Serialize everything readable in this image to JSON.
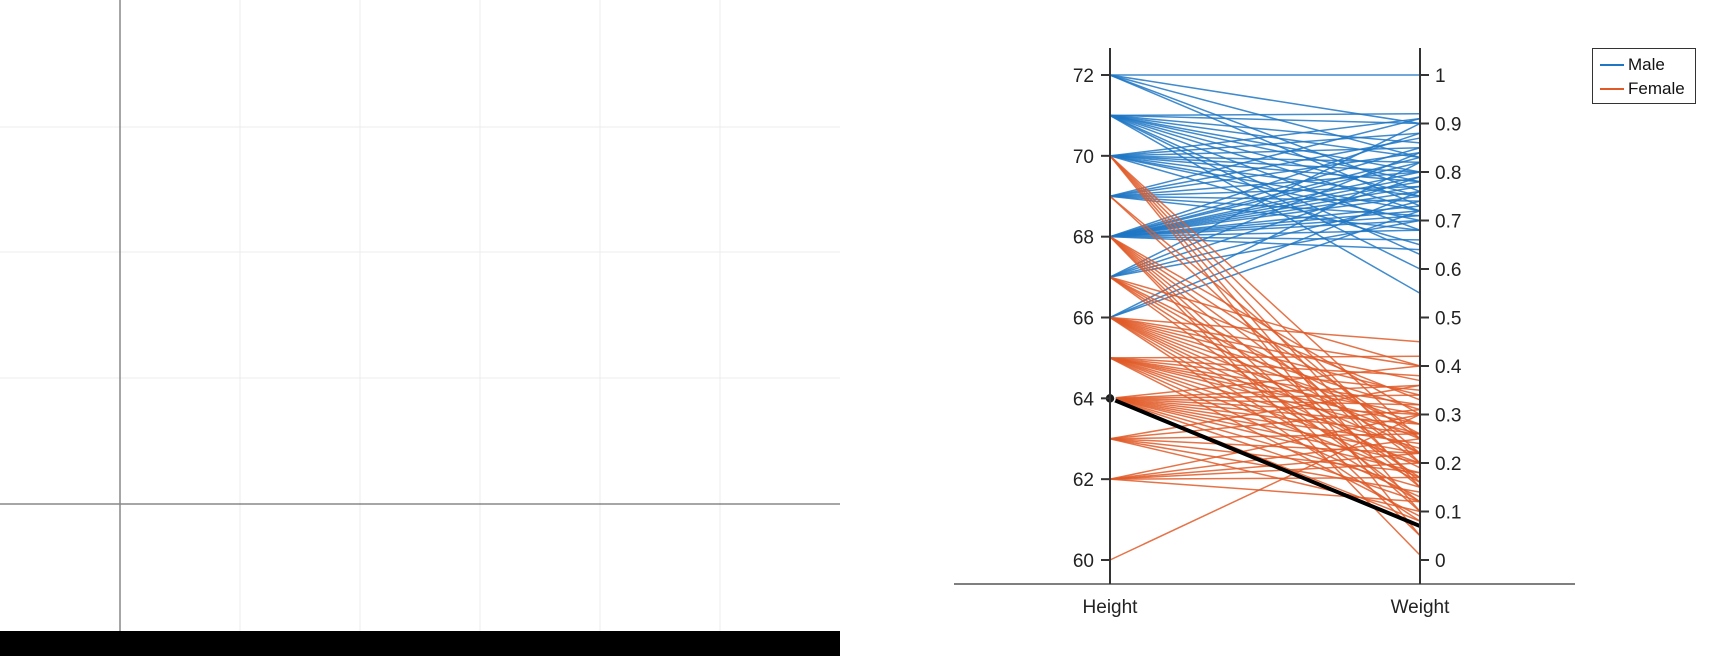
{
  "chart_data": {
    "type": "parallel-coordinates",
    "axes": [
      {
        "name": "Height",
        "ticks": [
          "60",
          "62",
          "64",
          "66",
          "68",
          "70",
          "72"
        ],
        "range": [
          60,
          72
        ]
      },
      {
        "name": "Weight",
        "ticks": [
          "0",
          "0.1",
          "0.2",
          "0.3",
          "0.4",
          "0.5",
          "0.6",
          "0.7",
          "0.8",
          "0.9",
          "1"
        ],
        "range": [
          0,
          1
        ]
      }
    ],
    "legend": {
      "placement": "top-right",
      "entries": [
        {
          "name": "Male"
        },
        {
          "name": "Female"
        }
      ]
    },
    "colors": {
      "Male": "#1f77c4",
      "Female": "#e05a28",
      "highlight": "#000000"
    },
    "highlight": {
      "height": 64,
      "weight": 0.07
    },
    "series": [
      {
        "name": "Male",
        "lines": [
          [
            72,
            1.0
          ],
          [
            72,
            0.9
          ],
          [
            72,
            0.83
          ],
          [
            72,
            0.76
          ],
          [
            72,
            0.73
          ],
          [
            71,
            0.92
          ],
          [
            71,
            0.9
          ],
          [
            71,
            0.86
          ],
          [
            71,
            0.83
          ],
          [
            71,
            0.8
          ],
          [
            71,
            0.78
          ],
          [
            71,
            0.75
          ],
          [
            71,
            0.72
          ],
          [
            71,
            0.68
          ],
          [
            71,
            0.63
          ],
          [
            71,
            0.6
          ],
          [
            71,
            0.55
          ],
          [
            70,
            0.91
          ],
          [
            70,
            0.88
          ],
          [
            70,
            0.85
          ],
          [
            70,
            0.82
          ],
          [
            70,
            0.8
          ],
          [
            70,
            0.78
          ],
          [
            70,
            0.75
          ],
          [
            70,
            0.72
          ],
          [
            70,
            0.7
          ],
          [
            70,
            0.65
          ],
          [
            69,
            0.91
          ],
          [
            69,
            0.87
          ],
          [
            69,
            0.84
          ],
          [
            69,
            0.8
          ],
          [
            69,
            0.77
          ],
          [
            69,
            0.74
          ],
          [
            69,
            0.71
          ],
          [
            69,
            0.68
          ],
          [
            68,
            0.88
          ],
          [
            68,
            0.85
          ],
          [
            68,
            0.83
          ],
          [
            68,
            0.82
          ],
          [
            68,
            0.8
          ],
          [
            68,
            0.79
          ],
          [
            68,
            0.78
          ],
          [
            68,
            0.77
          ],
          [
            68,
            0.76
          ],
          [
            68,
            0.75
          ],
          [
            68,
            0.73
          ],
          [
            68,
            0.72
          ],
          [
            68,
            0.71
          ],
          [
            68,
            0.7
          ],
          [
            68,
            0.68
          ],
          [
            68,
            0.66
          ],
          [
            68,
            0.64
          ],
          [
            67,
            0.9
          ],
          [
            67,
            0.84
          ],
          [
            67,
            0.79
          ],
          [
            67,
            0.74
          ],
          [
            67,
            0.7
          ],
          [
            66,
            0.82
          ],
          [
            66,
            0.76
          ],
          [
            66,
            0.72
          ]
        ]
      },
      {
        "name": "Female",
        "lines": [
          [
            70,
            0.25
          ],
          [
            70,
            0.2
          ],
          [
            70,
            0.15
          ],
          [
            70,
            0.1
          ],
          [
            70,
            0.05
          ],
          [
            69,
            0.22
          ],
          [
            69,
            0.16
          ],
          [
            68,
            0.3
          ],
          [
            68,
            0.25
          ],
          [
            68,
            0.2
          ],
          [
            68,
            0.15
          ],
          [
            68,
            0.1
          ],
          [
            68,
            0.05
          ],
          [
            68,
            0.01
          ],
          [
            67,
            0.4
          ],
          [
            67,
            0.33
          ],
          [
            67,
            0.26
          ],
          [
            67,
            0.22
          ],
          [
            67,
            0.17
          ],
          [
            67,
            0.12
          ],
          [
            66,
            0.45
          ],
          [
            66,
            0.4
          ],
          [
            66,
            0.37
          ],
          [
            66,
            0.34
          ],
          [
            66,
            0.31
          ],
          [
            66,
            0.28
          ],
          [
            66,
            0.25
          ],
          [
            66,
            0.22
          ],
          [
            66,
            0.19
          ],
          [
            66,
            0.16
          ],
          [
            66,
            0.12
          ],
          [
            66,
            0.08
          ],
          [
            65,
            0.42
          ],
          [
            65,
            0.38
          ],
          [
            65,
            0.35
          ],
          [
            65,
            0.32
          ],
          [
            65,
            0.3
          ],
          [
            65,
            0.28
          ],
          [
            65,
            0.26
          ],
          [
            65,
            0.23
          ],
          [
            65,
            0.2
          ],
          [
            65,
            0.17
          ],
          [
            65,
            0.13
          ],
          [
            65,
            0.09
          ],
          [
            64,
            0.4
          ],
          [
            64,
            0.36
          ],
          [
            64,
            0.34
          ],
          [
            64,
            0.32
          ],
          [
            64,
            0.3
          ],
          [
            64,
            0.28
          ],
          [
            64,
            0.26
          ],
          [
            64,
            0.24
          ],
          [
            64,
            0.22
          ],
          [
            64,
            0.2
          ],
          [
            64,
            0.18
          ],
          [
            64,
            0.15
          ],
          [
            64,
            0.12
          ],
          [
            64,
            0.08
          ],
          [
            63,
            0.36
          ],
          [
            63,
            0.31
          ],
          [
            63,
            0.26
          ],
          [
            63,
            0.22
          ],
          [
            63,
            0.18
          ],
          [
            63,
            0.14
          ],
          [
            63,
            0.1
          ],
          [
            62,
            0.3
          ],
          [
            62,
            0.25
          ],
          [
            62,
            0.22
          ],
          [
            62,
            0.2
          ],
          [
            62,
            0.17
          ],
          [
            62,
            0.12
          ],
          [
            60,
            0.3
          ]
        ]
      }
    ]
  }
}
